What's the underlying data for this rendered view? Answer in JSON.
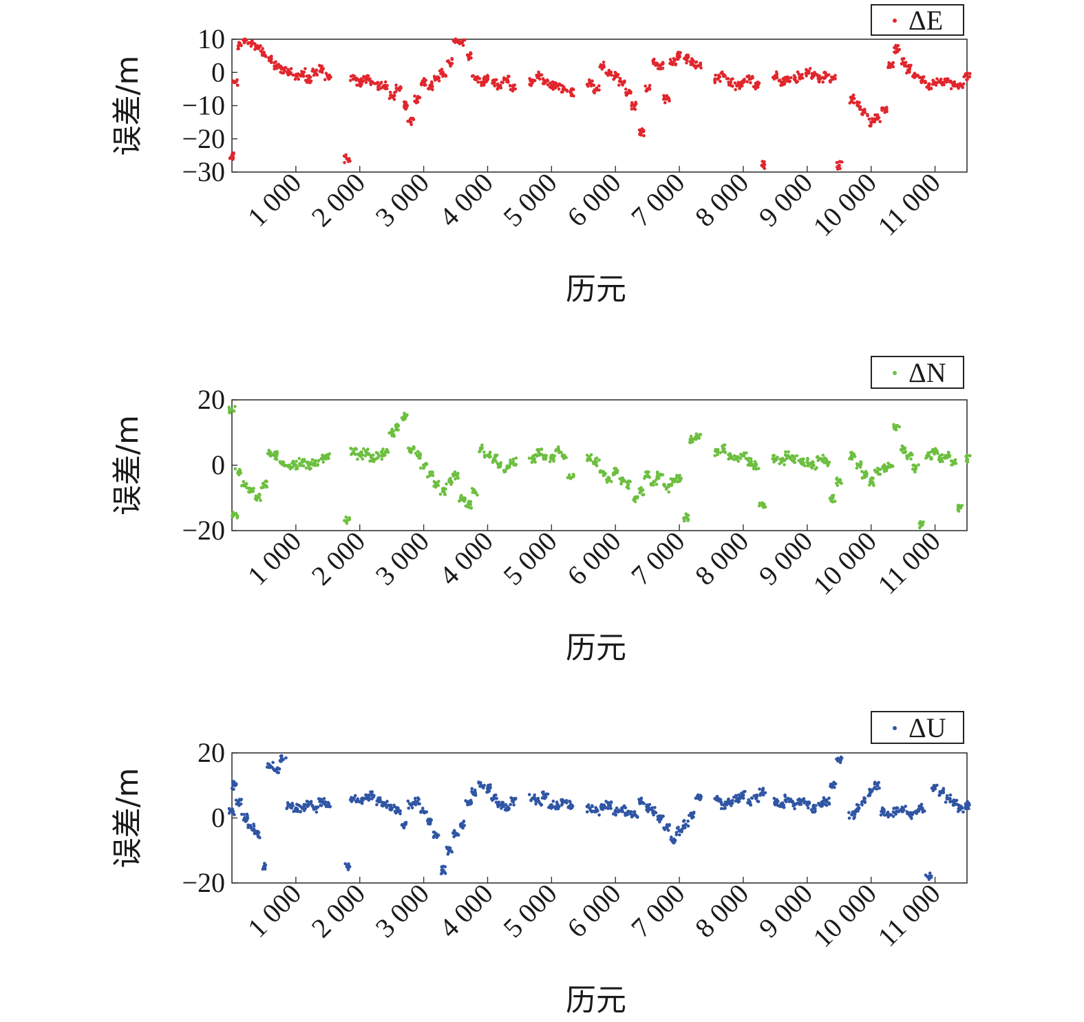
{
  "chart_data": [
    {
      "type": "scatter",
      "xlabel": "历元",
      "ylabel": "误差/m",
      "xlim": [
        0,
        11500
      ],
      "ylim": [
        -30,
        10
      ],
      "x_ticks": [
        1000,
        2000,
        3000,
        4000,
        5000,
        6000,
        7000,
        8000,
        9000,
        10000,
        11000
      ],
      "x_tick_labels": [
        "1 000",
        "2 000",
        "3 000",
        "4 000",
        "5 000",
        "6 000",
        "7 000",
        "8 000",
        "9 000",
        "10 000",
        "11 000"
      ],
      "y_ticks": [
        10,
        0,
        -10,
        -20,
        -30
      ],
      "y_tick_labels": [
        "10",
        "0",
        "−10",
        "−20",
        "−30"
      ],
      "grid": false,
      "legend_position": "top-right",
      "series": [
        {
          "name": "ΔE",
          "color": "#e0262c",
          "x": [
            0,
            50,
            100,
            200,
            300,
            400,
            500,
            600,
            700,
            800,
            900,
            1000,
            1100,
            1200,
            1300,
            1400,
            1500,
            1800,
            1900,
            2000,
            2100,
            2200,
            2300,
            2400,
            2500,
            2600,
            2700,
            2800,
            2900,
            3000,
            3100,
            3200,
            3300,
            3400,
            3500,
            3600,
            3700,
            3800,
            3900,
            4000,
            4100,
            4200,
            4300,
            4400,
            4700,
            4800,
            4900,
            5000,
            5100,
            5200,
            5300,
            5600,
            5700,
            5800,
            5900,
            6000,
            6100,
            6200,
            6300,
            6400,
            6500,
            6600,
            6700,
            6800,
            6900,
            7000,
            7100,
            7200,
            7300,
            7600,
            7700,
            7800,
            7900,
            8000,
            8100,
            8200,
            8300,
            8500,
            8600,
            8700,
            8800,
            8900,
            9000,
            9100,
            9200,
            9300,
            9400,
            9500,
            9700,
            9800,
            9900,
            10000,
            10100,
            10200,
            10300,
            10400,
            10500,
            10600,
            10700,
            10800,
            10900,
            11000,
            11100,
            11200,
            11300,
            11400,
            11500
          ],
          "y": [
            -25,
            -3,
            8,
            10,
            9,
            8,
            6,
            4,
            2,
            1,
            0,
            -1,
            0,
            -2,
            0,
            1,
            -1,
            -26,
            -2,
            -3,
            -2,
            -3,
            -4,
            -4,
            -7,
            -5,
            -10,
            -15,
            -8,
            -3,
            -4,
            -2,
            0,
            3,
            10,
            9,
            5,
            -2,
            -3,
            -2,
            -3,
            -4,
            -2,
            -5,
            -3,
            -1,
            -3,
            -4,
            -4,
            -5,
            -6,
            -3,
            -5,
            2,
            0,
            -1,
            -3,
            -6,
            -10,
            -18,
            -5,
            3,
            2,
            -8,
            3,
            5,
            4,
            3,
            2,
            -2,
            -1,
            -3,
            -4,
            -3,
            -2,
            -4,
            -28,
            -1,
            -3,
            -2,
            -2,
            -1,
            0,
            -1,
            -2,
            -1,
            -2,
            -28,
            -8,
            -10,
            -12,
            -15,
            -14,
            -11,
            2,
            7,
            3,
            1,
            -1,
            -2,
            -4,
            -3,
            -3,
            -2,
            -4,
            -4,
            -1
          ]
        }
      ]
    },
    {
      "type": "scatter",
      "xlabel": "历元",
      "ylabel": "误差/m",
      "xlim": [
        0,
        11500
      ],
      "ylim": [
        -20,
        20
      ],
      "x_ticks": [
        1000,
        2000,
        3000,
        4000,
        5000,
        6000,
        7000,
        8000,
        9000,
        10000,
        11000
      ],
      "x_tick_labels": [
        "1 000",
        "2 000",
        "3 000",
        "4 000",
        "5 000",
        "6 000",
        "7 000",
        "8 000",
        "9 000",
        "10 000",
        "11 000"
      ],
      "y_ticks": [
        20,
        0,
        -20
      ],
      "y_tick_labels": [
        "20",
        "0",
        "−20"
      ],
      "grid": false,
      "legend_position": "top-right",
      "series": [
        {
          "name": "ΔN",
          "color": "#6cbf3f",
          "x": [
            0,
            50,
            100,
            200,
            300,
            400,
            500,
            600,
            700,
            800,
            900,
            1000,
            1100,
            1200,
            1300,
            1400,
            1500,
            1800,
            1900,
            2000,
            2100,
            2200,
            2300,
            2400,
            2500,
            2600,
            2700,
            2800,
            2900,
            3000,
            3100,
            3200,
            3300,
            3400,
            3500,
            3600,
            3700,
            3800,
            3900,
            4000,
            4100,
            4200,
            4300,
            4400,
            4700,
            4800,
            4900,
            5000,
            5100,
            5200,
            5300,
            5600,
            5700,
            5800,
            5900,
            6000,
            6100,
            6200,
            6300,
            6400,
            6500,
            6600,
            6700,
            6800,
            6900,
            7000,
            7100,
            7200,
            7300,
            7600,
            7700,
            7800,
            7900,
            8000,
            8100,
            8200,
            8300,
            8500,
            8600,
            8700,
            8800,
            8900,
            9000,
            9100,
            9200,
            9300,
            9400,
            9500,
            9700,
            9800,
            9900,
            10000,
            10100,
            10200,
            10300,
            10400,
            10500,
            10600,
            10700,
            10800,
            10900,
            11000,
            11100,
            11200,
            11300,
            11400,
            11500
          ],
          "y": [
            17,
            -15,
            -2,
            -6,
            -8,
            -10,
            -6,
            4,
            3,
            1,
            0,
            0,
            1,
            0,
            1,
            2,
            3,
            -17,
            4,
            3,
            4,
            2,
            3,
            4,
            10,
            12,
            15,
            5,
            3,
            0,
            -3,
            -6,
            -8,
            -5,
            -3,
            -10,
            -12,
            -8,
            5,
            3,
            2,
            0,
            -1,
            1,
            2,
            4,
            3,
            2,
            5,
            3,
            -4,
            2,
            1,
            -2,
            -4,
            -2,
            -5,
            -6,
            -10,
            -8,
            -3,
            -5,
            -3,
            -7,
            -5,
            -4,
            -16,
            8,
            9,
            4,
            5,
            3,
            2,
            3,
            1,
            0,
            -12,
            2,
            1,
            3,
            2,
            1,
            1,
            0,
            2,
            1,
            -10,
            -5,
            3,
            0,
            -3,
            -5,
            -2,
            -1,
            0,
            12,
            5,
            3,
            -1,
            -18,
            3,
            4,
            2,
            3,
            1,
            -13,
            2
          ]
        }
      ]
    },
    {
      "type": "scatter",
      "xlabel": "历元",
      "ylabel": "误差/m",
      "xlim": [
        0,
        11500
      ],
      "ylim": [
        -20,
        20
      ],
      "x_ticks": [
        1000,
        2000,
        3000,
        4000,
        5000,
        6000,
        7000,
        8000,
        9000,
        10000,
        11000
      ],
      "x_tick_labels": [
        "1 000",
        "2 000",
        "3 000",
        "4 000",
        "5 000",
        "6 000",
        "7 000",
        "8 000",
        "9 000",
        "10 000",
        "11 000"
      ],
      "y_ticks": [
        20,
        0,
        -20
      ],
      "y_tick_labels": [
        "20",
        "0",
        "−20"
      ],
      "grid": false,
      "legend_position": "top-right",
      "series": [
        {
          "name": "ΔU",
          "color": "#2f55a4",
          "x": [
            0,
            50,
            100,
            200,
            300,
            400,
            500,
            600,
            700,
            800,
            900,
            1000,
            1100,
            1200,
            1300,
            1400,
            1500,
            1800,
            1900,
            2000,
            2100,
            2200,
            2300,
            2400,
            2500,
            2600,
            2700,
            2800,
            2900,
            3000,
            3100,
            3200,
            3300,
            3400,
            3500,
            3600,
            3700,
            3800,
            3900,
            4000,
            4100,
            4200,
            4300,
            4400,
            4700,
            4800,
            4900,
            5000,
            5100,
            5200,
            5300,
            5600,
            5700,
            5800,
            5900,
            6000,
            6100,
            6200,
            6300,
            6400,
            6500,
            6600,
            6700,
            6800,
            6900,
            7000,
            7100,
            7200,
            7300,
            7600,
            7700,
            7800,
            7900,
            8000,
            8100,
            8200,
            8300,
            8500,
            8600,
            8700,
            8800,
            8900,
            9000,
            9100,
            9200,
            9300,
            9400,
            9500,
            9700,
            9800,
            9900,
            10000,
            10100,
            10200,
            10300,
            10400,
            10500,
            10600,
            10700,
            10800,
            10900,
            11000,
            11100,
            11200,
            11300,
            11400,
            11500
          ],
          "y": [
            2,
            10,
            5,
            0,
            -3,
            -5,
            -15,
            16,
            15,
            18,
            4,
            3,
            3,
            4,
            3,
            5,
            4,
            -15,
            6,
            5,
            6,
            7,
            5,
            4,
            3,
            2,
            -2,
            4,
            5,
            2,
            -1,
            -5,
            -16,
            -10,
            -5,
            -2,
            5,
            8,
            10,
            9,
            6,
            4,
            3,
            5,
            6,
            5,
            7,
            4,
            4,
            5,
            4,
            3,
            2,
            3,
            4,
            2,
            3,
            2,
            1,
            5,
            3,
            2,
            0,
            -3,
            -7,
            -4,
            -2,
            1,
            6,
            6,
            4,
            5,
            6,
            7,
            5,
            6,
            8,
            5,
            4,
            6,
            4,
            5,
            4,
            3,
            4,
            5,
            10,
            18,
            1,
            3,
            5,
            8,
            10,
            2,
            1,
            2,
            3,
            1,
            2,
            3,
            -18,
            9,
            8,
            6,
            5,
            3,
            4
          ]
        }
      ]
    }
  ]
}
